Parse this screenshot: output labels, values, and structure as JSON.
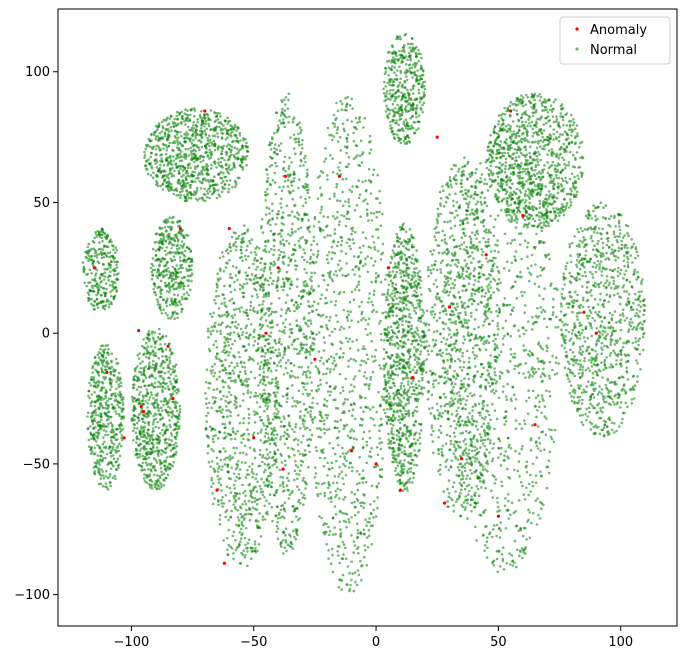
{
  "chart_data": {
    "type": "scatter",
    "title": "",
    "xlabel": "",
    "ylabel": "",
    "xlim": [
      -130,
      123
    ],
    "ylim": [
      -112,
      124
    ],
    "xticks": [
      -100,
      -50,
      0,
      50,
      100
    ],
    "yticks": [
      -100,
      -50,
      0,
      50,
      100
    ],
    "xtick_labels": [
      "−100",
      "−50",
      "0",
      "50",
      "100"
    ],
    "ytick_labels": [
      "−100",
      "−50",
      "0",
      "50",
      "100"
    ],
    "grid": false,
    "legend_position": "top-right",
    "series": [
      {
        "name": "Anomaly",
        "color": "#ff0000",
        "sample_points": [
          [
            -97,
            1
          ],
          [
            -95,
            -30
          ],
          [
            -96,
            -28
          ],
          [
            -80,
            40
          ],
          [
            -85,
            -5
          ],
          [
            -83,
            -25
          ],
          [
            -70,
            85
          ],
          [
            -60,
            40
          ],
          [
            -45,
            0
          ],
          [
            -50,
            -40
          ],
          [
            -40,
            25
          ],
          [
            -37,
            60
          ],
          [
            -38,
            -52
          ],
          [
            -15,
            60
          ],
          [
            -10,
            -45
          ],
          [
            0,
            -50
          ],
          [
            5,
            25
          ],
          [
            15,
            -17
          ],
          [
            10,
            -60
          ],
          [
            25,
            75
          ],
          [
            30,
            10
          ],
          [
            35,
            -48
          ],
          [
            45,
            30
          ],
          [
            50,
            -70
          ],
          [
            55,
            85
          ],
          [
            60,
            45
          ],
          [
            65,
            -35
          ],
          [
            85,
            8
          ],
          [
            90,
            0
          ],
          [
            -110,
            -15
          ],
          [
            -115,
            25
          ],
          [
            -103,
            -40
          ],
          [
            -65,
            -60
          ],
          [
            -62,
            -88
          ],
          [
            -25,
            -10
          ],
          [
            28,
            -65
          ]
        ]
      },
      {
        "name": "Normal",
        "color": "#008000",
        "clusters": [
          {
            "label": "x≈-115, y≈-60..-5 arc",
            "x_range": [
              -118,
              -103
            ],
            "y_range": [
              -60,
              -4
            ]
          },
          {
            "label": "x≈-115, y≈8..40 arc",
            "x_range": [
              -120,
              -105
            ],
            "y_range": [
              8,
              40
            ]
          },
          {
            "label": "x≈-95, y≈-60..0",
            "x_range": [
              -100,
              -80
            ],
            "y_range": [
              -60,
              2
            ]
          },
          {
            "label": "x≈-85, y≈15..45 loop",
            "x_range": [
              -92,
              -75
            ],
            "y_range": [
              5,
              45
            ]
          },
          {
            "label": "x≈-90..-55, y≈50..85 loops",
            "x_range": [
              -95,
              -52
            ],
            "y_range": [
              50,
              86
            ]
          },
          {
            "label": "x≈-55, y≈-90..40",
            "x_range": [
              -70,
              -40
            ],
            "y_range": [
              -90,
              42
            ]
          },
          {
            "label": "x≈-40, y≈-85..92",
            "x_range": [
              -48,
              -25
            ],
            "y_range": [
              -85,
              92
            ]
          },
          {
            "label": "x≈-15, y≈-100..92",
            "x_range": [
              -28,
              5
            ],
            "y_range": [
              -100,
              92
            ]
          },
          {
            "label": "x≈10, y≈72..115",
            "x_range": [
              3,
              20
            ],
            "y_range": [
              72,
              115
            ]
          },
          {
            "label": "x≈10, y≈-62..42",
            "x_range": [
              3,
              20
            ],
            "y_range": [
              -62,
              42
            ]
          },
          {
            "label": "x≈35, y≈-72..68",
            "x_range": [
              20,
              50
            ],
            "y_range": [
              -72,
              68
            ]
          },
          {
            "label": "x≈55, y≈-92..80",
            "x_range": [
              30,
              75
            ],
            "y_range": [
              -92,
              80
            ]
          },
          {
            "label": "x≈75, y≈40..92",
            "x_range": [
              45,
              85
            ],
            "y_range": [
              40,
              92
            ]
          },
          {
            "label": "x≈90, y≈-40..50",
            "x_range": [
              75,
              110
            ],
            "y_range": [
              -40,
              50
            ]
          }
        ]
      }
    ]
  }
}
